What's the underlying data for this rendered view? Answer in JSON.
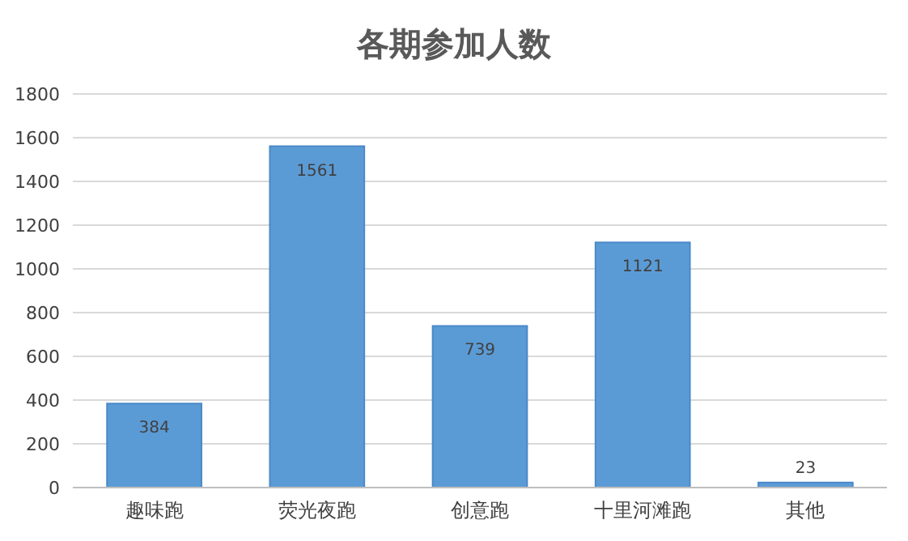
{
  "chart_data": {
    "type": "bar",
    "title": "各期参加人数",
    "categories": [
      "趣味跑",
      "荧光夜跑",
      "创意跑",
      "十里河滩跑",
      "其他"
    ],
    "values": [
      384,
      1561,
      739,
      1121,
      23
    ],
    "color": "#5b9bd5",
    "ylim": [
      0,
      1800
    ],
    "yticks": [
      0,
      200,
      400,
      600,
      800,
      1000,
      1200,
      1400,
      1600,
      1800
    ],
    "grid": "y",
    "data_labels": true
  }
}
